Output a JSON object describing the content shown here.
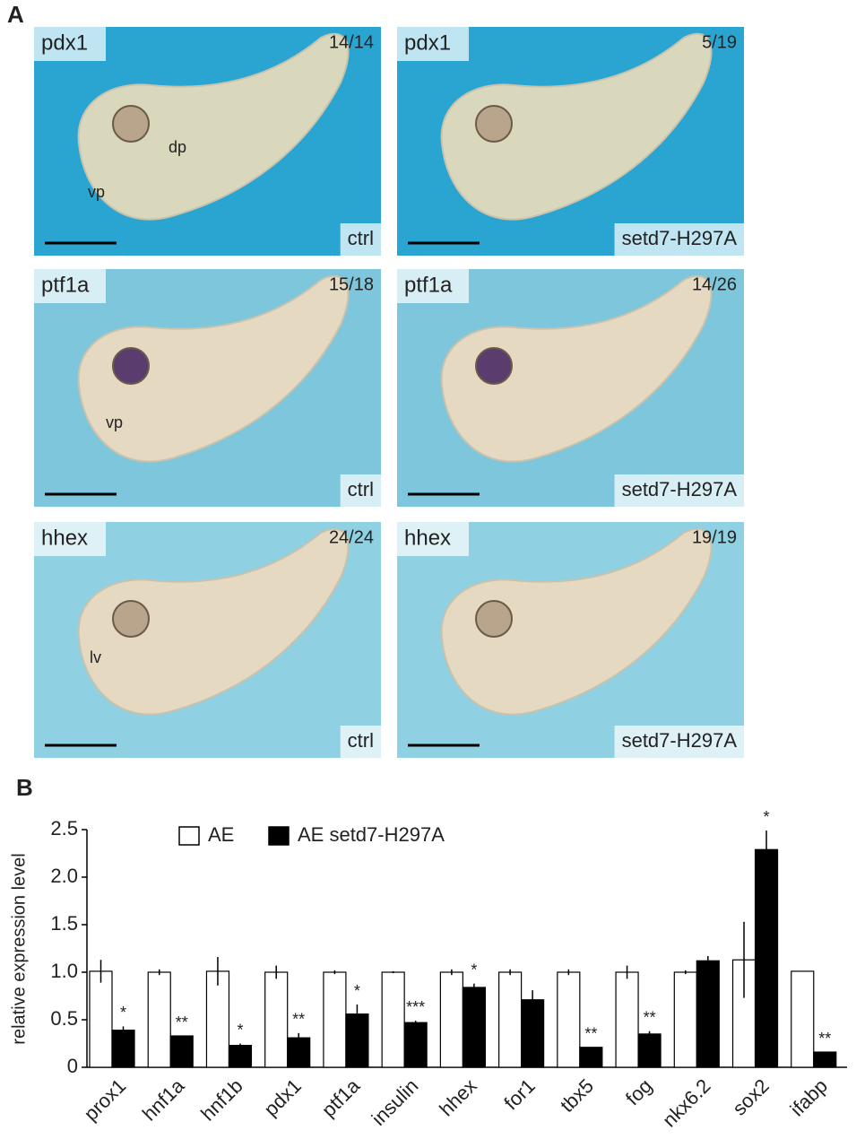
{
  "panel_a": {
    "label": "A",
    "images": [
      {
        "gene": "pdx1",
        "count": "14/14",
        "condition": "ctrl",
        "annotations": [
          "dp",
          "vp"
        ]
      },
      {
        "gene": "pdx1",
        "count": "5/19",
        "condition": "setd7-H297A",
        "annotations": []
      },
      {
        "gene": "ptf1a",
        "count": "15/18",
        "condition": "ctrl",
        "annotations": [
          "vp"
        ]
      },
      {
        "gene": "ptf1a",
        "count": "14/26",
        "condition": "setd7-H297A",
        "annotations": []
      },
      {
        "gene": "hhex",
        "count": "24/24",
        "condition": "ctrl",
        "annotations": [
          "lv"
        ]
      },
      {
        "gene": "hhex",
        "count": "19/19",
        "condition": "setd7-H297A",
        "annotations": []
      }
    ]
  },
  "chart_data": {
    "type": "bar",
    "panel_label": "B",
    "y_label": "relative expression level",
    "categories": [
      "prox1",
      "hnf1a",
      "hnf1b",
      "pdx1",
      "ptf1a",
      "insulin",
      "hhex",
      "for1",
      "tbx5",
      "fog",
      "nkx6.2",
      "sox2",
      "ifabp"
    ],
    "series": [
      {
        "name": "AE",
        "color": "#ffffff",
        "values": [
          1.01,
          1.0,
          1.01,
          1.0,
          1.0,
          1.0,
          1.0,
          1.0,
          1.0,
          1.0,
          1.0,
          1.13,
          1.01
        ],
        "errors": [
          0.12,
          0.03,
          0.15,
          0.07,
          0.02,
          0.01,
          0.03,
          0.03,
          0.03,
          0.07,
          0.02,
          0.4,
          0.0
        ]
      },
      {
        "name": "AE setd7-H297A",
        "color": "#000000",
        "values": [
          0.39,
          0.33,
          0.23,
          0.31,
          0.56,
          0.47,
          0.84,
          0.71,
          0.21,
          0.35,
          1.12,
          2.29,
          0.16
        ],
        "errors": [
          0.04,
          0.0,
          0.02,
          0.05,
          0.1,
          0.02,
          0.04,
          0.1,
          0.0,
          0.03,
          0.05,
          0.2,
          0.0
        ],
        "annotations": [
          "*",
          "**",
          "*",
          "**",
          "*",
          "***",
          "*",
          null,
          "**",
          "**",
          null,
          "*",
          "**"
        ]
      }
    ],
    "ylim": [
      0,
      2.5
    ],
    "yticks": [
      0,
      0.5,
      {
        "value": 1,
        "label": "1.0"
      },
      1.5,
      {
        "value": 2,
        "label": "2.0"
      },
      2.5
    ]
  }
}
